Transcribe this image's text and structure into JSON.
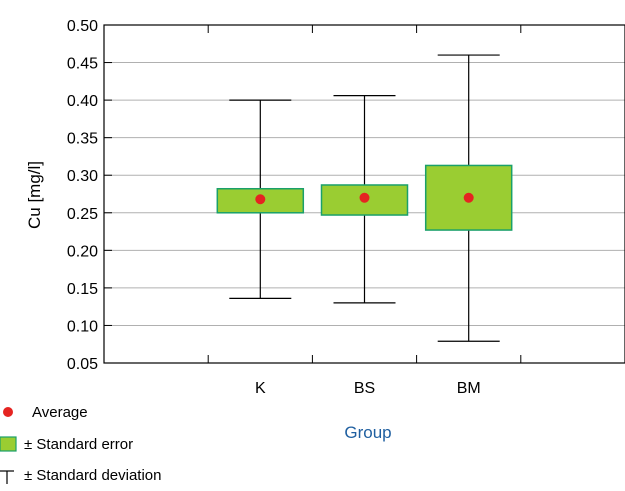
{
  "chart_data": {
    "type": "box",
    "xlabel": "Group",
    "ylabel": "Cu [mg/l]",
    "ylim": [
      0.05,
      0.5
    ],
    "yticks": [
      "0.05",
      "0.10",
      "0.15",
      "0.20",
      "0.25",
      "0.30",
      "0.35",
      "0.40",
      "0.45",
      "0.50"
    ],
    "grid": "horizontal",
    "categories": [
      "K",
      "BS",
      "BM"
    ],
    "groups": [
      {
        "name": "K",
        "mean": 0.268,
        "se_low": 0.25,
        "se_high": 0.282,
        "sd_low": 0.136,
        "sd_high": 0.4
      },
      {
        "name": "BS",
        "mean": 0.27,
        "se_low": 0.247,
        "se_high": 0.287,
        "sd_low": 0.13,
        "sd_high": 0.406
      },
      {
        "name": "BM",
        "mean": 0.27,
        "se_low": 0.227,
        "se_high": 0.313,
        "sd_low": 0.079,
        "sd_high": 0.46
      }
    ],
    "legend": [
      {
        "label": "Average",
        "symbol": "dot"
      },
      {
        "label": "± Standard error",
        "symbol": "box"
      },
      {
        "label": "± Standard deviation",
        "symbol": "whisker"
      }
    ],
    "legend_position": "bottom-left",
    "colors": {
      "mean": "#e52421",
      "box_fill": "#9acd32",
      "box_stroke": "#1aa06a",
      "whisker": "#000000",
      "grid": "#b0b0b0",
      "xlabel": "#1f5fa0"
    }
  }
}
